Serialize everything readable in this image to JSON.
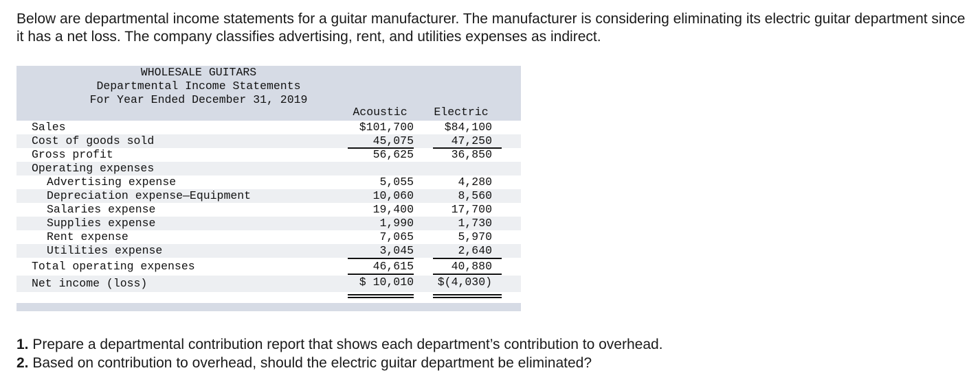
{
  "intro": "Below are departmental income statements for a guitar manufacturer. The manufacturer is considering eliminating its electric guitar department since it has a net loss. The company classifies advertising, rent, and utilities expenses as indirect.",
  "statement": {
    "company": "WHOLESALE GUITARS",
    "title": "Departmental Income Statements",
    "period": "For Year Ended December 31, 2019",
    "columns": [
      "Acoustic",
      "Electric"
    ],
    "rows": [
      {
        "label": "Sales",
        "acoustic": "$101,700",
        "electric": "$84,100"
      },
      {
        "label": "Cost of goods sold",
        "acoustic": "45,075",
        "electric": "47,250"
      },
      {
        "label": "Gross profit",
        "acoustic": "56,625",
        "electric": "36,850"
      },
      {
        "label": "Operating expenses",
        "acoustic": "",
        "electric": ""
      },
      {
        "label": "Advertising expense",
        "acoustic": "5,055",
        "electric": "4,280"
      },
      {
        "label": "Depreciation expense—Equipment",
        "acoustic": "10,060",
        "electric": "8,560"
      },
      {
        "label": "Salaries expense",
        "acoustic": "19,400",
        "electric": "17,700"
      },
      {
        "label": "Supplies expense",
        "acoustic": "1,990",
        "electric": "1,730"
      },
      {
        "label": "Rent expense",
        "acoustic": "7,065",
        "electric": "5,970"
      },
      {
        "label": "Utilities expense",
        "acoustic": "3,045",
        "electric": "2,640"
      },
      {
        "label": "Total operating expenses",
        "acoustic": "46,615",
        "electric": "40,880"
      },
      {
        "label": "Net income (loss)",
        "acoustic": "$ 10,010",
        "electric": "$(4,030)"
      }
    ]
  },
  "questions": [
    {
      "num": "1.",
      "text": " Prepare a departmental contribution report that shows each department’s contribution to overhead."
    },
    {
      "num": "2.",
      "text": " Based on contribution to overhead, should the electric guitar department be eliminated?"
    }
  ]
}
